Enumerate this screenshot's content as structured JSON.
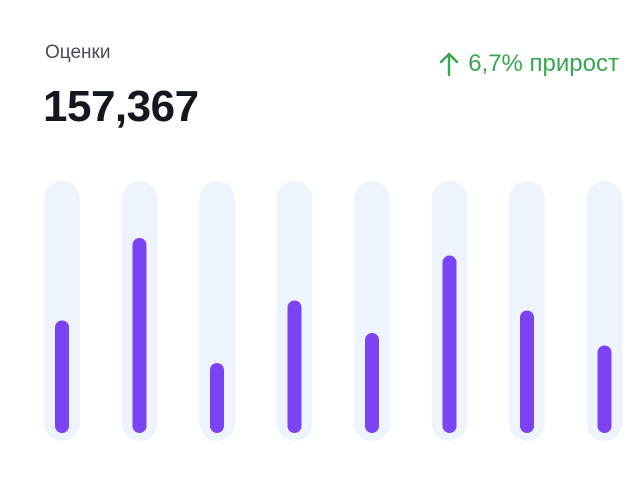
{
  "card": {
    "label": "Оценки",
    "value": "157,367",
    "growth_text": "6,7% прирост",
    "growth_icon": "arrow-up-icon",
    "growth_color": "#38a64f"
  },
  "chart_data": {
    "type": "bar",
    "title": "",
    "xlabel": "",
    "ylabel": "",
    "categories": [
      "",
      "",
      "",
      "",
      "",
      "",
      "",
      ""
    ],
    "values": [
      45,
      78,
      28,
      53,
      40,
      71,
      49,
      35
    ],
    "ylim": [
      0,
      100
    ],
    "grid": false,
    "bar_color": "#7c43f2",
    "track_color": "#eef4fd"
  }
}
